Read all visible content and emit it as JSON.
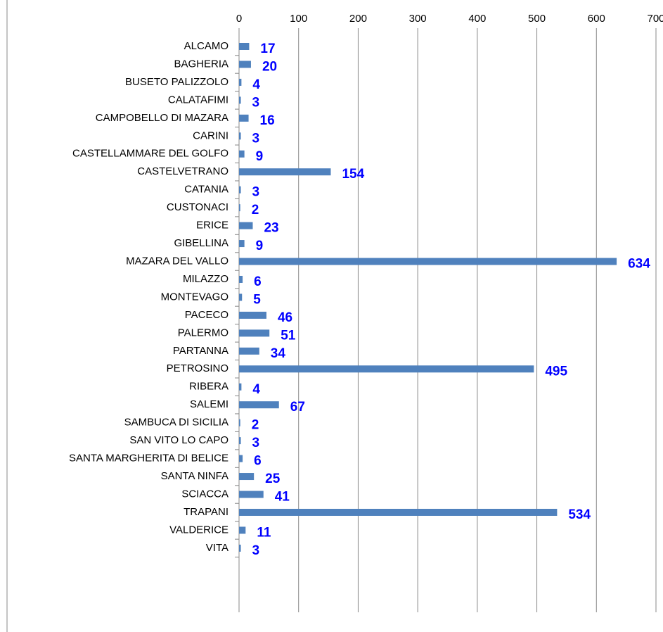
{
  "chart_data": {
    "type": "bar",
    "orientation": "horizontal",
    "categories": [
      "ALCAMO",
      "BAGHERIA",
      "BUSETO PALIZZOLO",
      "CALATAFIMI",
      "CAMPOBELLO DI MAZARA",
      "CARINI",
      "CASTELLAMMARE DEL GOLFO",
      "CASTELVETRANO",
      "CATANIA",
      "CUSTONACI",
      "ERICE",
      "GIBELLINA",
      "MAZARA DEL VALLO",
      "MILAZZO",
      "MONTEVAGO",
      "PACECO",
      "PALERMO",
      "PARTANNA",
      "PETROSINO",
      "RIBERA",
      "SALEMI",
      "SAMBUCA DI SICILIA",
      "SAN VITO LO CAPO",
      "SANTA MARGHERITA DI BELICE",
      "SANTA NINFA",
      "SCIACCA",
      "TRAPANI",
      "VALDERICE",
      "VITA"
    ],
    "values": [
      17,
      20,
      4,
      3,
      16,
      3,
      9,
      154,
      3,
      2,
      23,
      9,
      634,
      6,
      5,
      46,
      51,
      34,
      495,
      4,
      67,
      2,
      3,
      6,
      25,
      41,
      534,
      11,
      3
    ],
    "color": "#4f81bd",
    "xlim": [
      0,
      700
    ],
    "xticks": [
      0,
      100,
      200,
      300,
      400,
      500,
      600,
      700
    ],
    "grid": true
  }
}
